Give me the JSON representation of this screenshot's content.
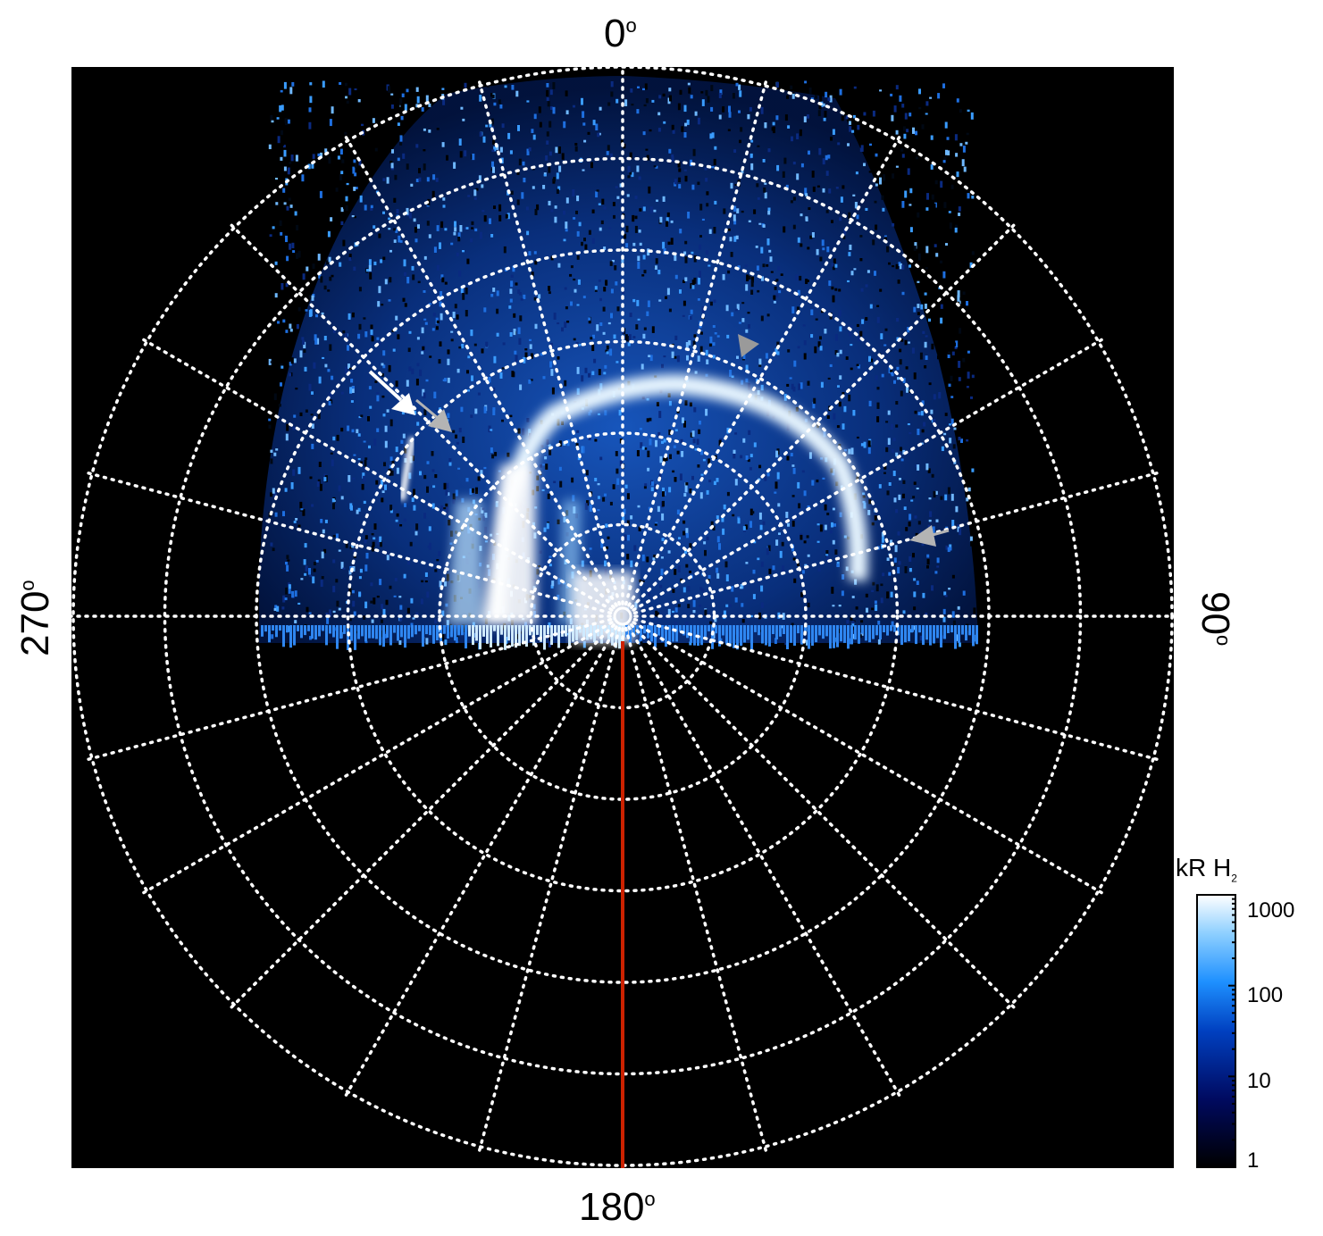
{
  "figure": {
    "longitude_labels": {
      "top": "0",
      "right": "90",
      "bottom": "180",
      "left": "270",
      "degree_symbol": "o"
    },
    "colorbar": {
      "unit": "kR H",
      "unit_subscript": "2",
      "scale": "log",
      "ticks": [
        "1000",
        "100",
        "10",
        "1"
      ],
      "colors": [
        "#000000",
        "#000a60",
        "#0040c0",
        "#1e90ff",
        "#8fd0ff",
        "#ffffff"
      ]
    },
    "colors": {
      "background": "#000000",
      "grid": "#ffffff",
      "reference_line": "#cc2200",
      "arrow_white": "#ffffff",
      "arrow_gray": "#b4b4b4"
    },
    "annotations": [
      "white-arrow",
      "gray-arrow",
      "gray-arrow",
      "gray-arrow"
    ]
  }
}
